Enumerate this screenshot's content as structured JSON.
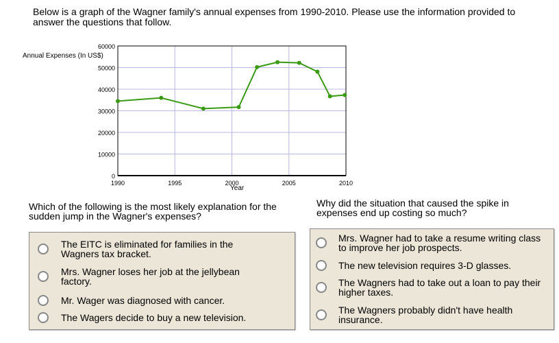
{
  "intro": "Below is a graph of the Wagner family's annual expenses from 1990-2010. Please use the information provided to answer the questions that follow.",
  "chart_data": {
    "type": "line",
    "ylabel": "Annual Expenses (In US$)",
    "xlabel": "Year",
    "xlim": [
      1990,
      2010
    ],
    "ylim": [
      0,
      60000
    ],
    "xticks": [
      "1990",
      "1995",
      "2000",
      "2005",
      "2010"
    ],
    "yticks": [
      "0",
      "10000",
      "20000",
      "30000",
      "40000",
      "50000",
      "60000"
    ],
    "grid": true,
    "color": "#3a9a14",
    "x": [
      1990,
      1993.8,
      1997.5,
      2000.6,
      2002.2,
      2004,
      2005.9,
      2007.5,
      2008.6,
      2009.9
    ],
    "y": [
      34500,
      36000,
      31000,
      31700,
      50200,
      52500,
      52200,
      48100,
      36700,
      37300
    ]
  },
  "q1": {
    "question": "Which of the following is the most likely explanation for the sudden jump in the Wagner's expenses?",
    "options": [
      "The EITC is eliminated for families in the Wagners tax bracket.",
      "Mrs. Wagner loses her job at the jellybean factory.",
      "Mr. Wager was diagnosed with cancer.",
      "The Wagers decide to buy a new television."
    ]
  },
  "q2": {
    "question": "Why did the situation that caused the spike in expenses end up costing so much?",
    "options": [
      "Mrs. Wagner had to take a resume writing class to improve her job prospects.",
      "The new television requires 3-D glasses.",
      "The Wagners had to take out a loan to pay their higher taxes.",
      "The Wagners probably didn't have health insurance."
    ]
  }
}
